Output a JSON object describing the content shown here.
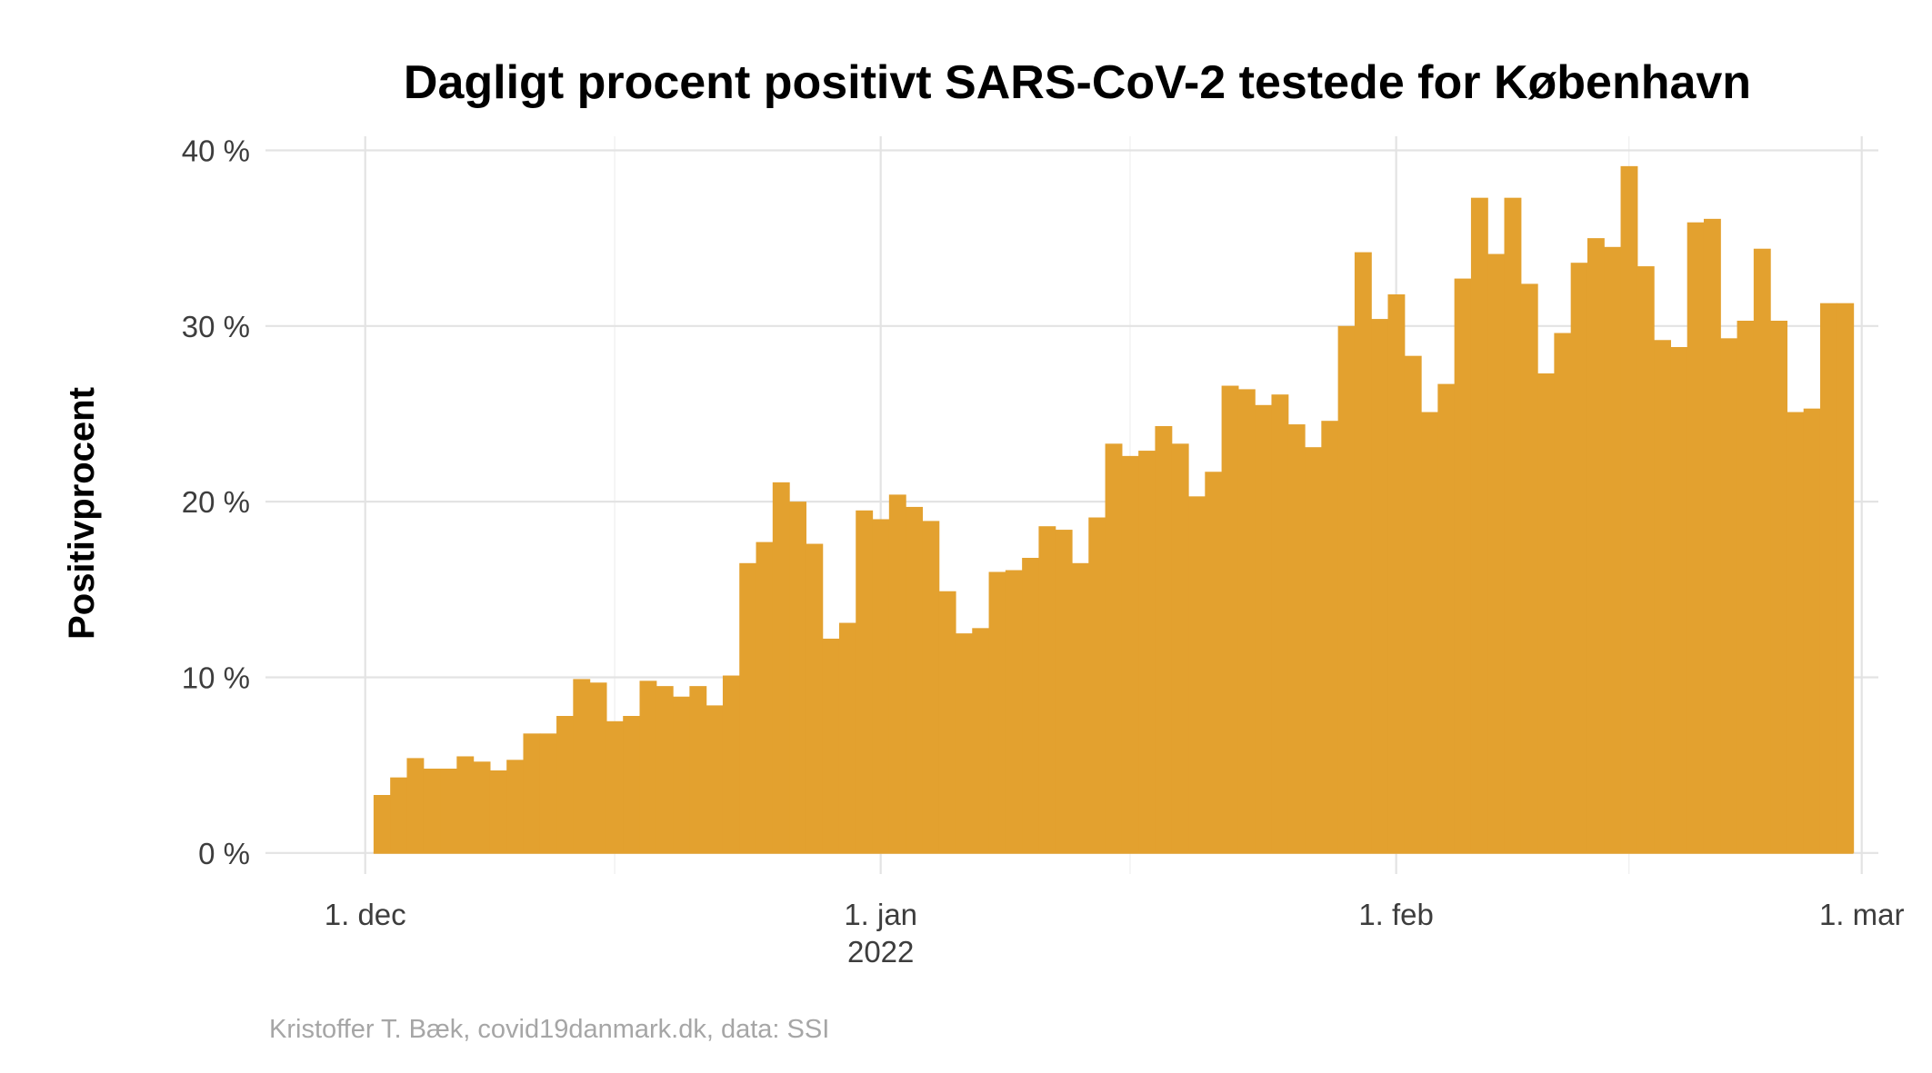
{
  "chart_data": {
    "type": "bar",
    "title": "Dagligt procent positivt SARS-CoV-2 testede for København",
    "ylabel": "Positivprocent",
    "xlabel": "",
    "caption": "Kristoffer T. Bæk, covid19danmark.dk, data: SSI",
    "color": "#E3A12F",
    "x_start": "2021-12-02",
    "x_range": [
      "2021-11-25",
      "2022-03-02"
    ],
    "ylim": [
      -1.2,
      40.8
    ],
    "y_ticks": [
      {
        "value": 0,
        "label": "0 %"
      },
      {
        "value": 10,
        "label": "10 %"
      },
      {
        "value": 20,
        "label": "20 %"
      },
      {
        "value": 30,
        "label": "30 %"
      },
      {
        "value": 40,
        "label": "40 %"
      }
    ],
    "x_ticks": [
      {
        "date": "2021-12-01",
        "label": "1. dec",
        "sublabel": ""
      },
      {
        "date": "2022-01-01",
        "label": "1. jan",
        "sublabel": "2022"
      },
      {
        "date": "2022-02-01",
        "label": "1. feb",
        "sublabel": ""
      },
      {
        "date": "2022-03-01",
        "label": "1. mar",
        "sublabel": ""
      }
    ],
    "x_minor_ticks": [
      "2021-12-16",
      "2022-01-16",
      "2022-02-15"
    ],
    "values": [
      3.3,
      4.3,
      5.4,
      4.8,
      4.8,
      5.5,
      5.2,
      4.7,
      5.3,
      6.8,
      6.8,
      7.8,
      9.9,
      9.7,
      7.5,
      7.8,
      9.8,
      9.5,
      8.9,
      9.5,
      8.4,
      10.1,
      16.5,
      17.7,
      21.1,
      20.0,
      17.6,
      12.2,
      13.1,
      19.5,
      19.0,
      20.4,
      19.7,
      18.9,
      14.9,
      12.5,
      12.8,
      16.0,
      16.1,
      16.8,
      18.6,
      18.4,
      16.5,
      19.1,
      23.3,
      22.6,
      22.9,
      24.3,
      23.3,
      20.3,
      21.7,
      26.6,
      26.4,
      25.5,
      26.1,
      24.4,
      23.1,
      24.6,
      30.0,
      34.2,
      30.4,
      31.8,
      28.3,
      25.1,
      26.7,
      32.7,
      37.3,
      34.1,
      37.3,
      32.4,
      27.3,
      29.6,
      33.6,
      35.0,
      34.5,
      39.1,
      33.4,
      29.2,
      28.8,
      35.9,
      36.1,
      29.3,
      30.3,
      34.4,
      30.3,
      25.1,
      25.3,
      31.3,
      31.3
    ]
  }
}
